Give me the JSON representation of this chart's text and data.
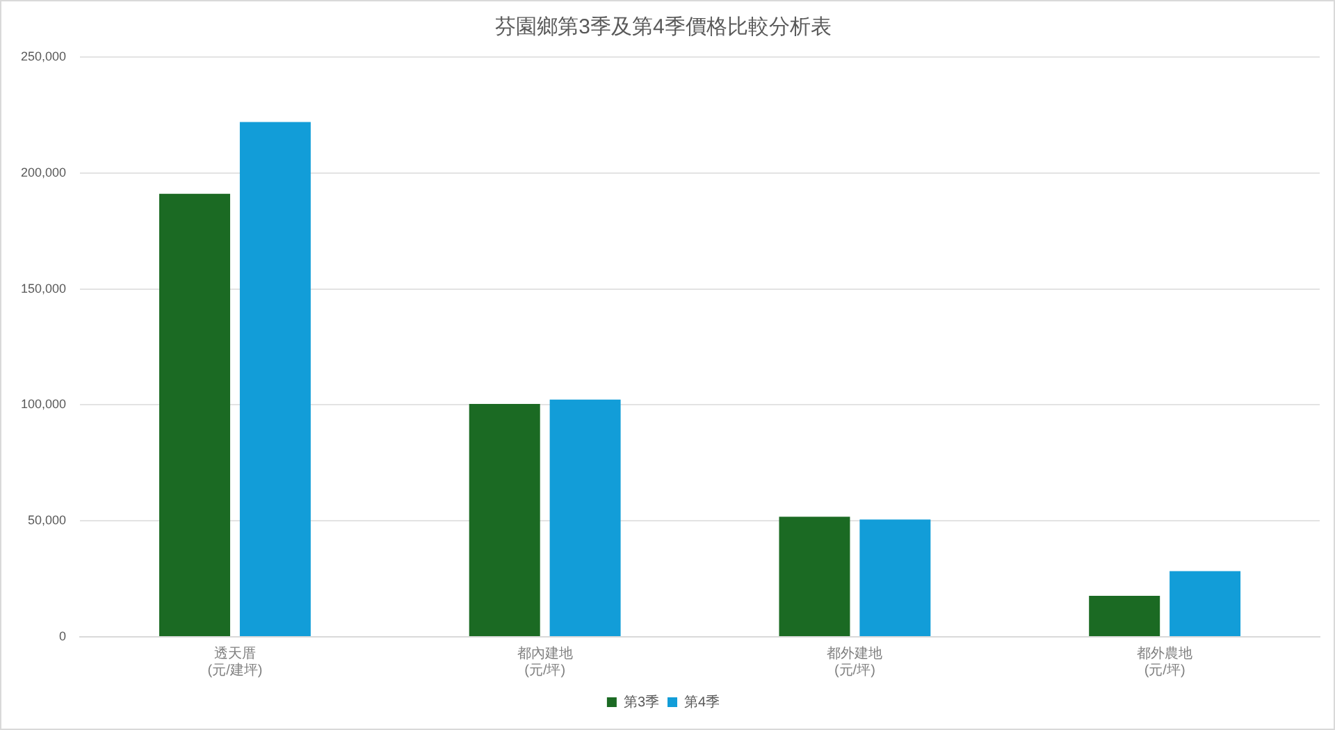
{
  "chart_data": {
    "type": "bar",
    "title": "芬園鄉第3季及第4季價格比較分析表",
    "categories": [
      "透天厝\n(元/建坪)",
      "都內建地\n(元/坪)",
      "都外建地\n(元/坪)",
      "都外農地\n(元/坪)"
    ],
    "series": [
      {
        "name": "第3季",
        "color": "#1b6a23",
        "values": [
          191000,
          100400,
          51800,
          17700
        ]
      },
      {
        "name": "第4季",
        "color": "#129dd8",
        "values": [
          222000,
          102300,
          50600,
          28300
        ]
      }
    ],
    "ylim": [
      0,
      250000
    ],
    "yticks": [
      {
        "value": 0,
        "label": "0"
      },
      {
        "value": 50000,
        "label": "50,000"
      },
      {
        "value": 100000,
        "label": "100,000"
      },
      {
        "value": 150000,
        "label": "150,000"
      },
      {
        "value": 200000,
        "label": "200,000"
      },
      {
        "value": 250000,
        "label": "250,000"
      }
    ],
    "grid": "y",
    "legend": "bottom"
  }
}
